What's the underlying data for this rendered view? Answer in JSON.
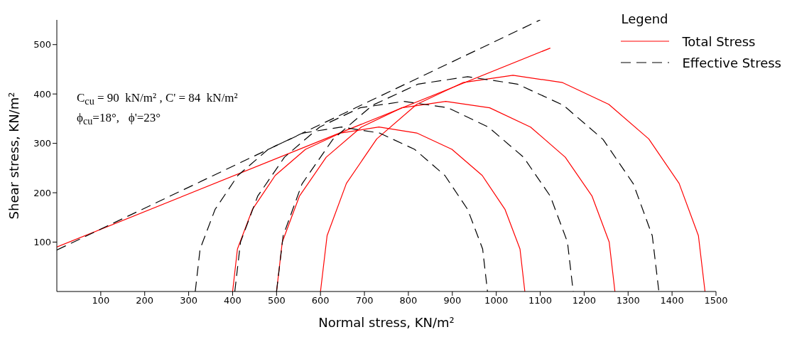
{
  "chart_data": {
    "type": "line",
    "xlabel": "Normal stress, KN/m²",
    "ylabel": "Shear stress, KN/m²",
    "legend_title": "Legend",
    "legend": "top right",
    "marker": "none",
    "xlim": [
      0,
      1500
    ],
    "xticks": [
      100,
      200,
      300,
      400,
      500,
      600,
      700,
      800,
      900,
      1000,
      1100,
      1200,
      1300,
      1400,
      1500
    ],
    "ylim": [
      0,
      550
    ],
    "yticks": [
      100,
      200,
      300,
      400,
      500
    ],
    "annotations": [
      "C$_{cu}$ = 90  kN/m² , C' = 84  kN/m²",
      "ϕ$_{cu}$=18°,   ϕ'=23°"
    ],
    "series": [
      {
        "name": "Total Stress",
        "color": "#ff0000",
        "line_style": "solid",
        "x": [
          0,
          1123
        ],
        "values": [
          90,
          493
        ]
      },
      {
        "color": "#ff0000",
        "line_style": "solid",
        "x": [
          400,
          411,
          445,
          497,
          566,
          646,
          733,
          819,
          899,
          968,
          1020,
          1054,
          1065
        ],
        "values": [
          0,
          86,
          166,
          235,
          288,
          321,
          333,
          321,
          288,
          235,
          166,
          86,
          0
        ]
      },
      {
        "color": "#ff0000",
        "line_style": "solid",
        "x": [
          500,
          513,
          552,
          613,
          693,
          785,
          885,
          985,
          1078,
          1157,
          1218,
          1257,
          1270
        ],
        "values": [
          0,
          100,
          193,
          272,
          333,
          372,
          385,
          372,
          333,
          272,
          193,
          100,
          0
        ]
      },
      {
        "color": "#ff0000",
        "line_style": "solid",
        "x": [
          600,
          615,
          659,
          728,
          819,
          924,
          1038,
          1151,
          1256,
          1347,
          1416,
          1460,
          1475
        ],
        "values": [
          0,
          113,
          219,
          309,
          379,
          423,
          438,
          423,
          379,
          309,
          219,
          113,
          0
        ]
      },
      {
        "name": "Effective Stress",
        "color": "#000000",
        "line_style": "dashed",
        "x": [
          0,
          1100
        ],
        "values": [
          84,
          550
        ]
      },
      {
        "color": "#000000",
        "line_style": "dashed",
        "x": [
          315,
          326,
          360,
          412,
          481,
          561,
          648,
          734,
          814,
          883,
          935,
          969,
          980
        ],
        "values": [
          0,
          86,
          166,
          235,
          288,
          321,
          333,
          321,
          288,
          235,
          166,
          86,
          0
        ]
      },
      {
        "color": "#000000",
        "line_style": "dashed",
        "x": [
          405,
          418,
          457,
          518,
          598,
          690,
          790,
          890,
          982,
          1062,
          1123,
          1162,
          1175
        ],
        "values": [
          0,
          100,
          193,
          272,
          333,
          372,
          385,
          372,
          333,
          272,
          193,
          100,
          0
        ]
      },
      {
        "color": "#000000",
        "line_style": "dashed",
        "x": [
          500,
          515,
          558,
          628,
          718,
          822,
          935,
          1048,
          1153,
          1243,
          1312,
          1355,
          1370
        ],
        "values": [
          0,
          113,
          218,
          308,
          377,
          420,
          435,
          420,
          377,
          308,
          218,
          113,
          0
        ]
      }
    ]
  }
}
